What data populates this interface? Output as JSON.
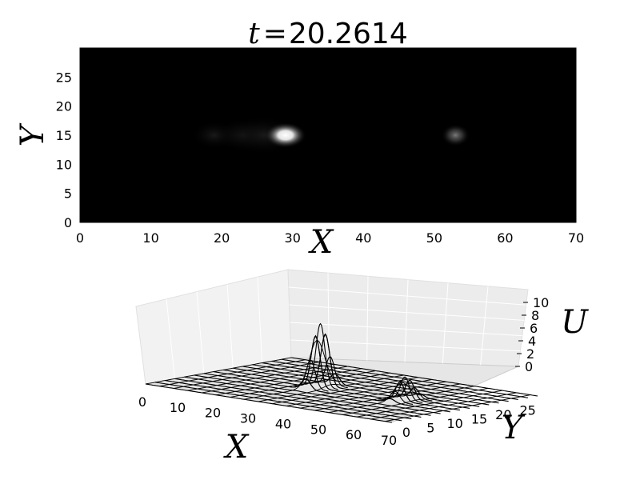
{
  "title": {
    "variable": "t",
    "equals": "=",
    "value": "20.2614"
  },
  "chart_data": [
    {
      "type": "heatmap",
      "colormap": "gray",
      "xlabel": "X",
      "ylabel": "Y",
      "xlim": [
        0,
        70
      ],
      "ylim": [
        0,
        30
      ],
      "xticks": [
        0,
        10,
        20,
        30,
        40,
        50,
        60,
        70
      ],
      "yticks": [
        0,
        5,
        10,
        15,
        20,
        25
      ],
      "peaks": [
        {
          "x": 29,
          "y": 15,
          "intensity": 1.0
        },
        {
          "x": 53,
          "y": 15,
          "intensity": 0.4
        }
      ]
    },
    {
      "type": "surface",
      "style": "wireframe",
      "xlabel": "X",
      "ylabel": "Y",
      "zlabel": "U",
      "xlim": [
        0,
        70
      ],
      "ylim": [
        0,
        30
      ],
      "zlim": [
        0,
        12
      ],
      "xticks": [
        0,
        10,
        20,
        30,
        40,
        50,
        60,
        70
      ],
      "yticks": [
        0,
        5,
        10,
        15,
        20,
        25
      ],
      "zticks": [
        0,
        2,
        4,
        6,
        8,
        10
      ],
      "peaks": [
        {
          "x": 29,
          "y": 15,
          "height": 11
        },
        {
          "x": 53,
          "y": 15,
          "height": 4
        }
      ]
    }
  ]
}
